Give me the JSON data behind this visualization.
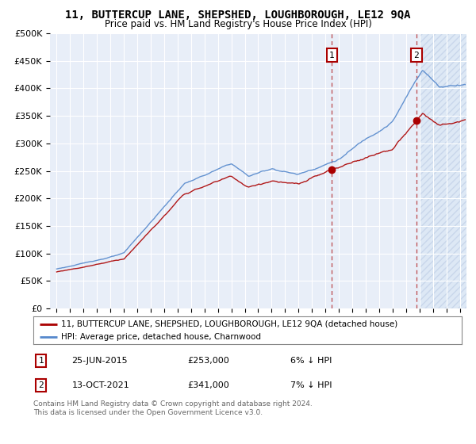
{
  "title": "11, BUTTERCUP LANE, SHEPSHED, LOUGHBOROUGH, LE12 9QA",
  "subtitle": "Price paid vs. HM Land Registry's House Price Index (HPI)",
  "red_label": "11, BUTTERCUP LANE, SHEPSHED, LOUGHBOROUGH, LE12 9QA (detached house)",
  "blue_label": "HPI: Average price, detached house, Charnwood",
  "annotation1_date": "25-JUN-2015",
  "annotation1_price": "£253,000",
  "annotation1_pct": "6% ↓ HPI",
  "annotation2_date": "13-OCT-2021",
  "annotation2_price": "£341,000",
  "annotation2_pct": "7% ↓ HPI",
  "footnote": "Contains HM Land Registry data © Crown copyright and database right 2024.\nThis data is licensed under the Open Government Licence v3.0.",
  "sale1_x": 2015.48,
  "sale1_y": 253000,
  "sale2_x": 2021.78,
  "sale2_y": 341000,
  "ylim": [
    0,
    500000
  ],
  "xlim": [
    1994.5,
    2025.5
  ],
  "plot_bg": "#e8eef8",
  "red_color": "#aa0000",
  "blue_color": "#5588cc",
  "shade_start": 2022.0
}
